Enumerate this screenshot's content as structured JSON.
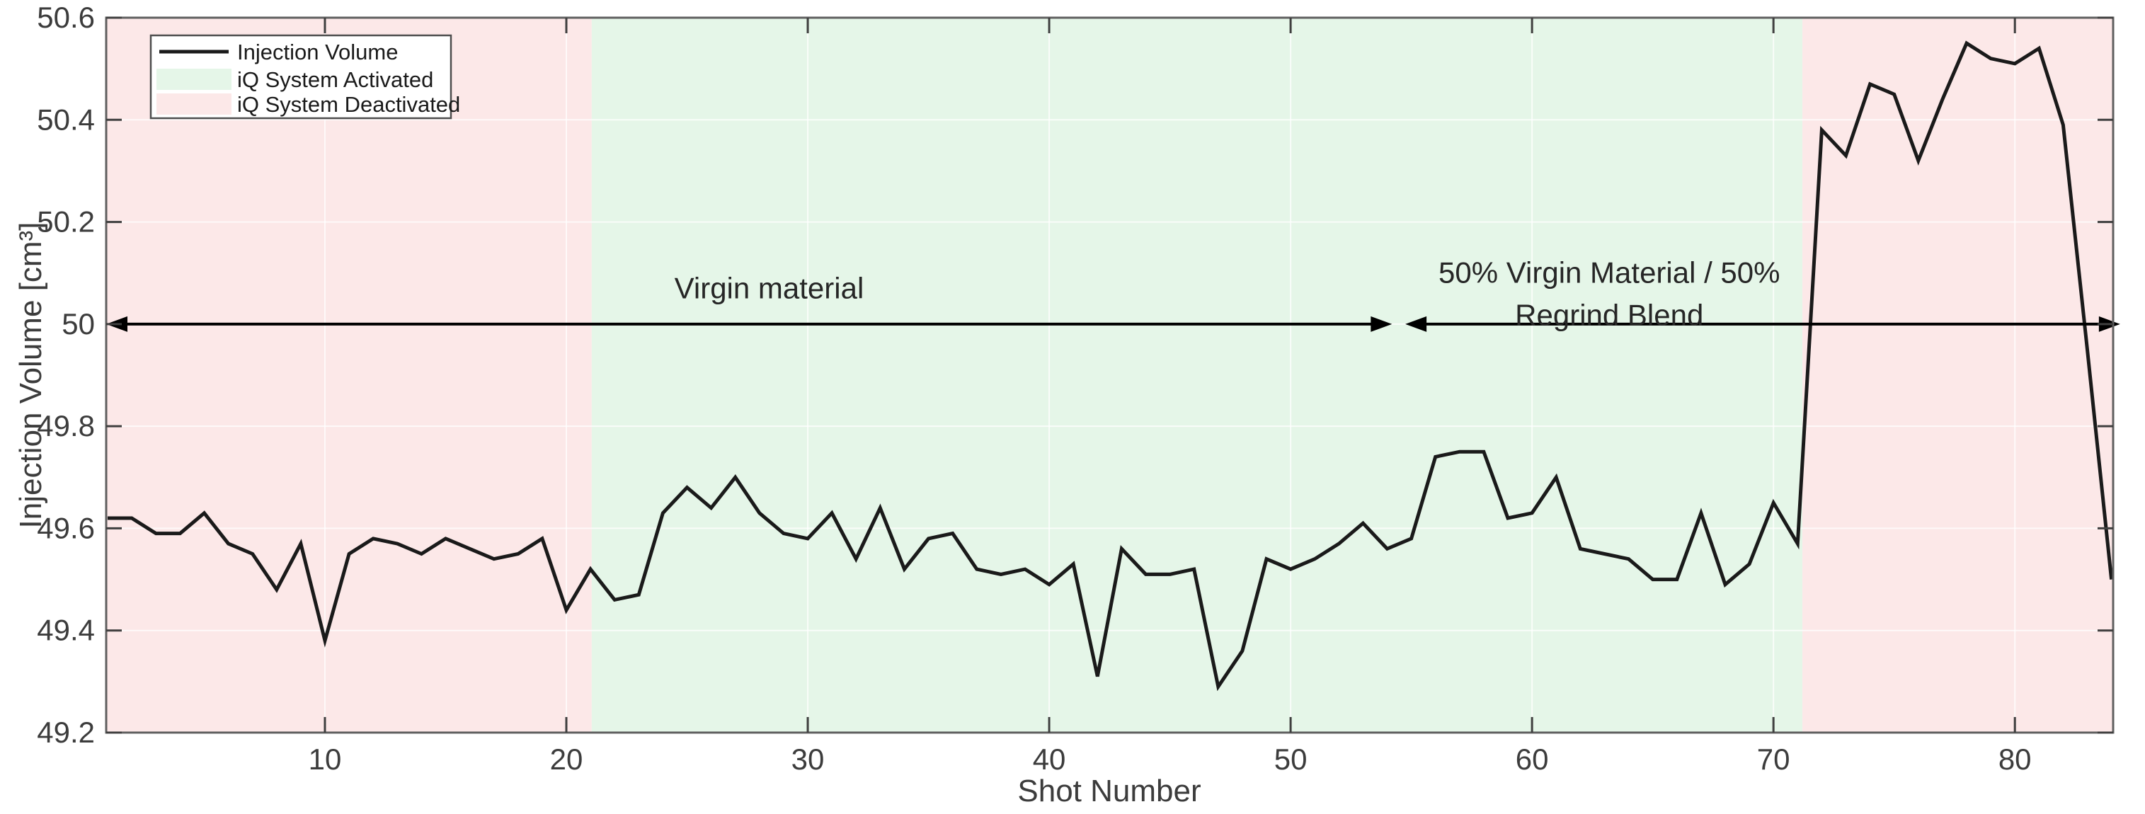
{
  "chart_data": {
    "type": "line",
    "title": "",
    "xlabel": "Shot Number",
    "ylabel": "Injection Volume [cm³]",
    "xlim": [
      0.94,
      84.07
    ],
    "ylim": [
      49.2,
      50.6
    ],
    "xticks": [
      10,
      20,
      30,
      40,
      50,
      60,
      70,
      80
    ],
    "yticks": [
      49.2,
      49.4,
      49.6,
      49.8,
      50,
      50.2,
      50.4,
      50.6
    ],
    "ytick_labels": [
      "49.2",
      "49.4",
      "49.6",
      "49.8",
      "50",
      "50.2",
      "50.4",
      "50.6"
    ],
    "grid": true,
    "series": [
      {
        "name": "Injection Volume",
        "color": "#1a1a1a",
        "x_first": 1,
        "values": [
          49.62,
          49.62,
          49.59,
          49.59,
          49.63,
          49.57,
          49.55,
          49.48,
          49.57,
          49.38,
          49.55,
          49.58,
          49.57,
          49.55,
          49.58,
          49.56,
          49.54,
          49.55,
          49.58,
          49.44,
          49.52,
          49.46,
          49.47,
          49.63,
          49.68,
          49.64,
          49.7,
          49.63,
          49.59,
          49.58,
          49.63,
          49.54,
          49.64,
          49.52,
          49.58,
          49.59,
          49.52,
          49.51,
          49.52,
          49.49,
          49.53,
          49.31,
          49.56,
          49.51,
          49.51,
          49.52,
          49.29,
          49.36,
          49.54,
          49.52,
          49.54,
          49.57,
          49.61,
          49.56,
          49.58,
          49.74,
          49.75,
          49.75,
          49.62,
          49.63,
          49.7,
          49.56,
          49.55,
          49.54,
          49.5,
          49.5,
          49.63,
          49.49,
          49.53,
          49.65,
          49.57,
          50.38,
          50.33,
          50.47,
          50.45,
          50.32,
          50.44,
          50.55,
          50.52,
          50.51,
          50.54,
          50.39,
          49.95,
          49.5
        ]
      }
    ],
    "regions": [
      {
        "label": "iQ System Deactivated",
        "from": 0.94,
        "to": 21.05,
        "color": "#fce8e8"
      },
      {
        "label": "iQ System Activated",
        "from": 21.05,
        "to": 71.2,
        "color": "#e5f6e8"
      },
      {
        "label": "iQ System Deactivated",
        "from": 71.2,
        "to": 84.07,
        "color": "#fce8e8"
      }
    ],
    "legend": {
      "position": "top-left",
      "items": [
        {
          "label": "Injection Volume",
          "type": "line",
          "color": "#1a1a1a"
        },
        {
          "label": "iQ System Activated",
          "type": "patch",
          "color": "#e5f6e8"
        },
        {
          "label": "iQ System Deactivated",
          "type": "patch",
          "color": "#fce8e8"
        }
      ]
    },
    "annotations": [
      {
        "text": "Virgin material",
        "x": 28.4,
        "y": 50.07,
        "arrow": {
          "x1": 0.94,
          "x2": 54.2,
          "y": 50
        }
      },
      {
        "text": "50% Virgin Material / 50%\nRegrind Blend",
        "x": 63.2,
        "y": 50.1,
        "arrow": {
          "x1": 54.75,
          "x2": 84.36,
          "y": 50
        }
      }
    ],
    "style": {
      "line_width": 5,
      "grid_color": "rgba(255,255,255,0.75)",
      "spine_color": "#5f5f5f",
      "tick_color": "#3f3f3f",
      "tick_label_color": "#3c3c3c",
      "annotation_color": "#262626"
    }
  }
}
